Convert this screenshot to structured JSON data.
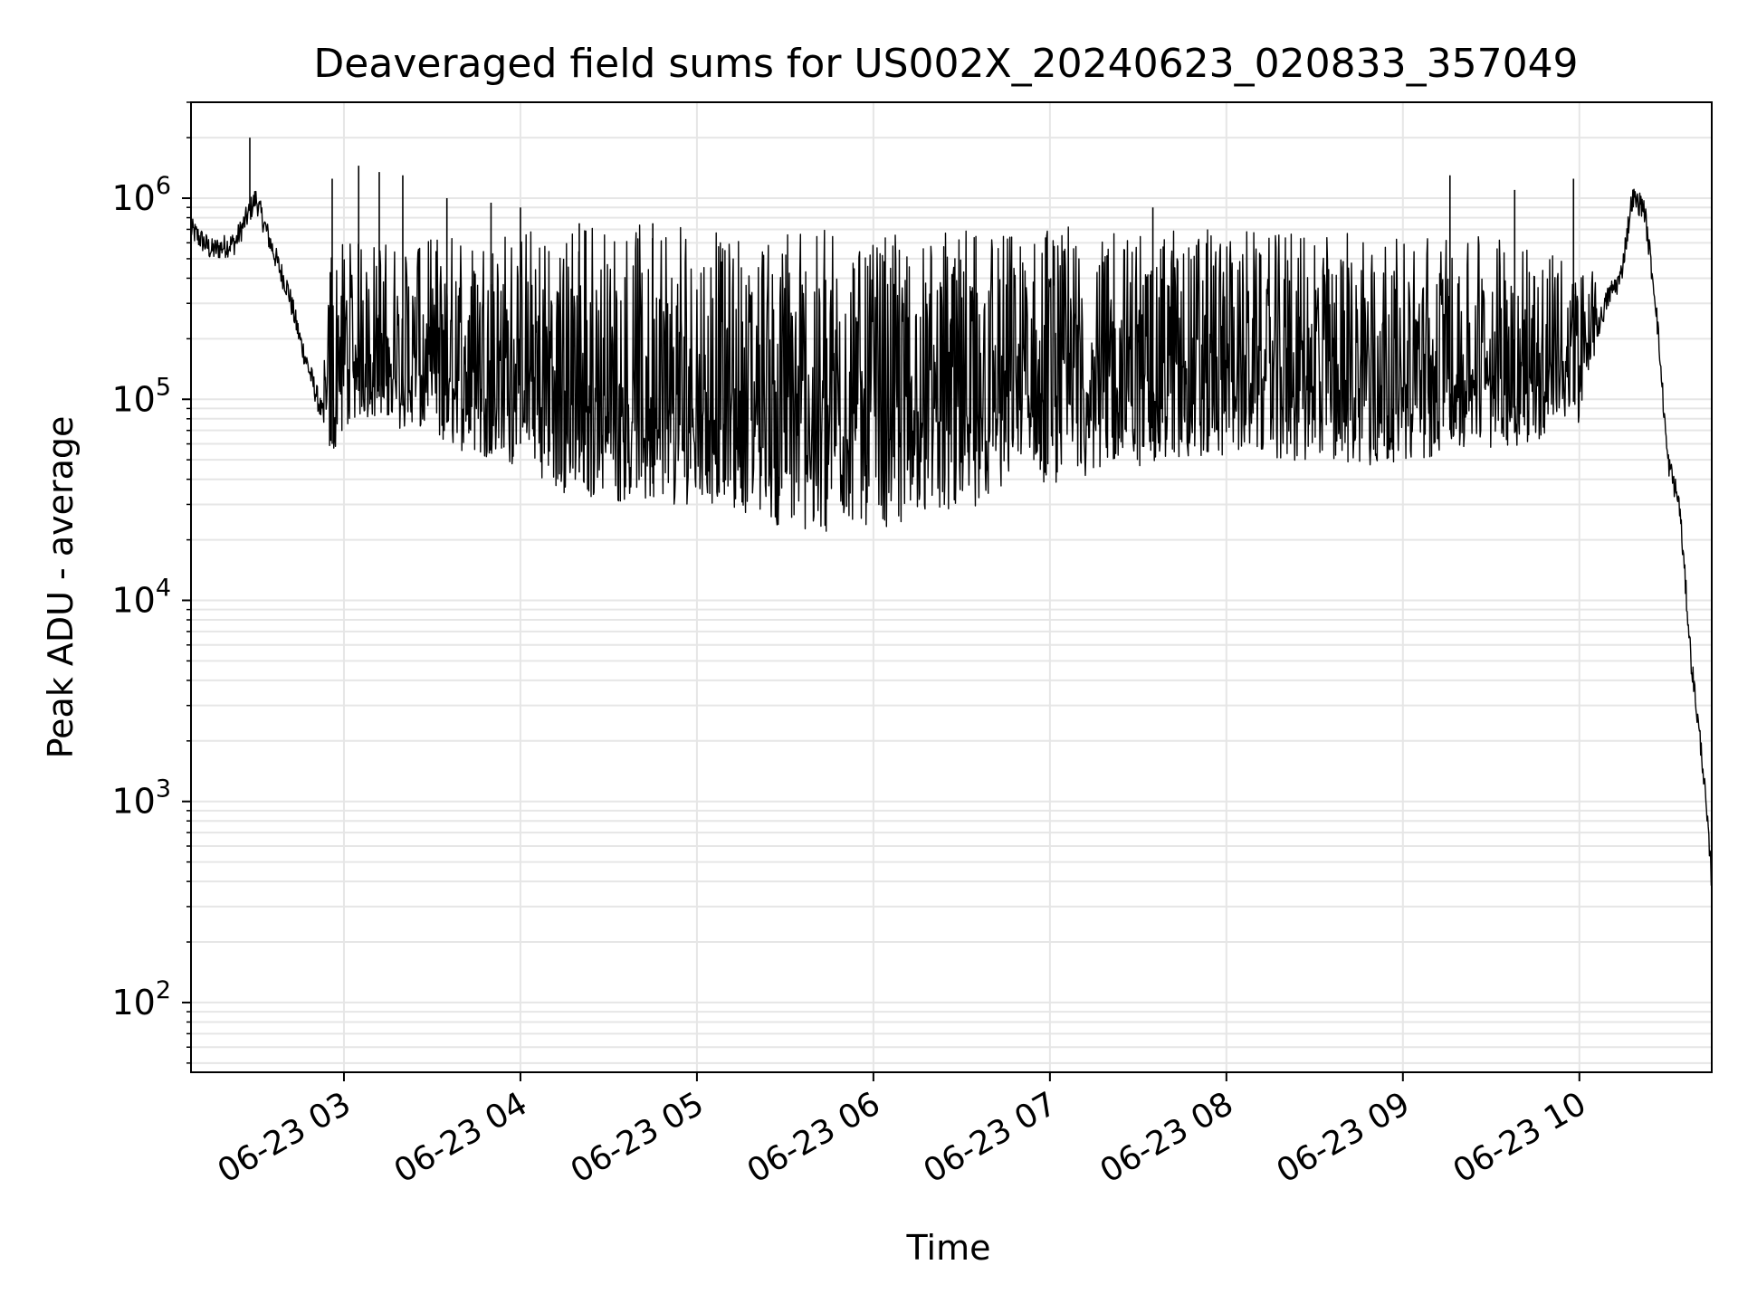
{
  "chart_data": {
    "type": "line",
    "title": "Deaveraged field sums for US002X_20240623_020833_357049",
    "xlabel": "Time",
    "ylabel": "Peak ADU - average",
    "yscale": "log",
    "ylim": [
      45,
      3000000
    ],
    "xlim": [
      "2024-06-23 02:08",
      "2024-06-23 10:45"
    ],
    "grid": true,
    "x_tick_labels": [
      "06-23 03",
      "06-23 04",
      "06-23 05",
      "06-23 06",
      "06-23 07",
      "06-23 08",
      "06-23 09",
      "06-23 10"
    ],
    "x_tick_values": [
      "2024-06-23 03:00",
      "2024-06-23 04:00",
      "2024-06-23 05:00",
      "2024-06-23 06:00",
      "2024-06-23 07:00",
      "2024-06-23 08:00",
      "2024-06-23 09:00",
      "2024-06-23 10:00"
    ],
    "y_tick_labels": [
      {
        "base": "10",
        "exp": "2",
        "value": 100
      },
      {
        "base": "10",
        "exp": "3",
        "value": 1000
      },
      {
        "base": "10",
        "exp": "4",
        "value": 10000
      },
      {
        "base": "10",
        "exp": "5",
        "value": 100000
      },
      {
        "base": "10",
        "exp": "6",
        "value": 1000000
      }
    ],
    "series": [
      {
        "color": "#000000",
        "x": [
          "2024-06-23 02:08",
          "2024-06-23 02:15",
          "2024-06-23 02:23",
          "2024-06-23 02:30",
          "2024-06-23 02:35",
          "2024-06-23 02:38",
          "2024-06-23 02:41",
          "2024-06-23 02:45",
          "2024-06-23 02:52",
          "2024-06-23 02:56",
          "2024-06-23 02:58",
          "2024-06-23 03:05",
          "2024-06-23 03:15",
          "2024-06-23 03:30",
          "2024-06-23 03:45",
          "2024-06-23 04:00",
          "2024-06-23 04:15",
          "2024-06-23 04:30",
          "2024-06-23 04:45",
          "2024-06-23 05:00",
          "2024-06-23 05:15",
          "2024-06-23 05:30",
          "2024-06-23 05:45",
          "2024-06-23 06:00",
          "2024-06-23 06:15",
          "2024-06-23 06:30",
          "2024-06-23 06:45",
          "2024-06-23 07:00",
          "2024-06-23 07:15",
          "2024-06-23 07:30",
          "2024-06-23 07:45",
          "2024-06-23 08:00",
          "2024-06-23 08:15",
          "2024-06-23 08:30",
          "2024-06-23 08:45",
          "2024-06-23 09:00",
          "2024-06-23 09:15",
          "2024-06-23 09:30",
          "2024-06-23 09:45",
          "2024-06-23 10:00",
          "2024-06-23 10:05",
          "2024-06-23 10:10",
          "2024-06-23 10:14",
          "2024-06-23 10:18",
          "2024-06-23 10:22",
          "2024-06-23 10:26",
          "2024-06-23 10:30",
          "2024-06-23 10:34",
          "2024-06-23 10:38",
          "2024-06-23 10:42",
          "2024-06-23 10:45"
        ],
        "y": [
          700000,
          550000,
          600000,
          1000000,
          600000,
          450000,
          350000,
          200000,
          90000,
          60000,
          85000,
          110000,
          100000,
          80000,
          70000,
          60000,
          45000,
          40000,
          38000,
          40000,
          35000,
          30000,
          28000,
          30000,
          32000,
          35000,
          45000,
          50000,
          55000,
          60000,
          65000,
          70000,
          65000,
          60000,
          60000,
          65000,
          70000,
          75000,
          80000,
          100000,
          200000,
          330000,
          400000,
          1000000,
          900000,
          300000,
          50000,
          30000,
          5000,
          1500,
          400
        ],
        "band_high": [
          700000,
          550000,
          600000,
          1000000,
          600000,
          450000,
          350000,
          200000,
          90000,
          600000,
          600000,
          600000,
          550000,
          600000,
          650000,
          650000,
          650000,
          700000,
          700000,
          650000,
          650000,
          650000,
          650000,
          650000,
          650000,
          650000,
          650000,
          650000,
          700000,
          650000,
          650000,
          650000,
          650000,
          650000,
          650000,
          600000,
          600000,
          600000,
          550000,
          450000,
          400000,
          350000,
          400000,
          1000000,
          900000,
          300000,
          50000,
          30000,
          5000,
          1500,
          400
        ],
        "spikes": [
          {
            "x": "2024-06-23 02:28",
            "y": 2000000
          },
          {
            "x": "2024-06-23 02:56",
            "y": 1250000
          },
          {
            "x": "2024-06-23 03:05",
            "y": 1450000
          },
          {
            "x": "2024-06-23 03:12",
            "y": 1350000
          },
          {
            "x": "2024-06-23 03:20",
            "y": 1300000
          },
          {
            "x": "2024-06-23 03:35",
            "y": 1000000
          },
          {
            "x": "2024-06-23 03:50",
            "y": 950000
          },
          {
            "x": "2024-06-23 04:00",
            "y": 900000
          },
          {
            "x": "2024-06-23 04:20",
            "y": 750000
          },
          {
            "x": "2024-06-23 04:45",
            "y": 750000
          },
          {
            "x": "2024-06-23 07:35",
            "y": 900000
          },
          {
            "x": "2024-06-23 09:16",
            "y": 1300000
          },
          {
            "x": "2024-06-23 09:38",
            "y": 1100000
          },
          {
            "x": "2024-06-23 09:58",
            "y": 1250000
          }
        ]
      }
    ]
  }
}
